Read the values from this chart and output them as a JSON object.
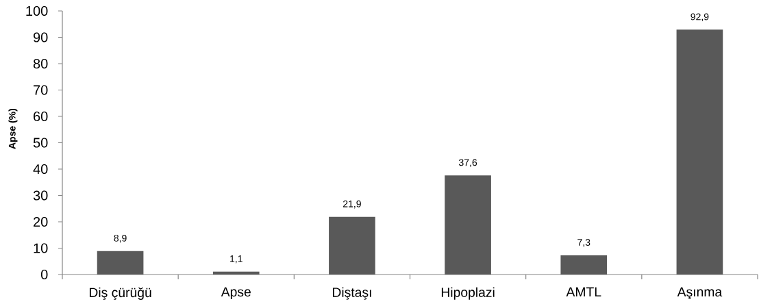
{
  "chart_data": {
    "type": "bar",
    "ylabel": "Apse (%)",
    "categories": [
      "Diş çürüğü",
      "Apse",
      "Diştaşı",
      "Hipoplazi",
      "AMTL",
      "Aşınma"
    ],
    "values": [
      8.9,
      1.1,
      21.9,
      37.6,
      7.3,
      92.9
    ],
    "value_labels": [
      "8,9",
      "1,1",
      "21,9",
      "37,6",
      "7,3",
      "92,9"
    ],
    "color": "#595959",
    "ylim": [
      0,
      100
    ],
    "yticks": [
      0,
      10,
      20,
      30,
      40,
      50,
      60,
      70,
      80,
      90,
      100
    ]
  }
}
